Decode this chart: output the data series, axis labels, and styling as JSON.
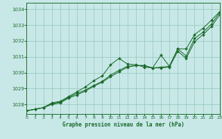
{
  "title": "Graphe pression niveau de la mer (hPa)",
  "bg_color": "#c8e8e8",
  "grid_color": "#99ccbb",
  "line_color": "#1a6b2a",
  "xlim": [
    0,
    23
  ],
  "ylim": [
    1027.4,
    1034.4
  ],
  "yticks": [
    1028,
    1029,
    1030,
    1031,
    1032,
    1033,
    1034
  ],
  "xticks": [
    0,
    1,
    2,
    3,
    4,
    5,
    6,
    7,
    8,
    9,
    10,
    11,
    12,
    13,
    14,
    15,
    16,
    17,
    18,
    19,
    20,
    21,
    22,
    23
  ],
  "hours": [
    0,
    1,
    2,
    3,
    4,
    5,
    6,
    7,
    8,
    9,
    10,
    11,
    12,
    13,
    14,
    15,
    16,
    17,
    18,
    19,
    20,
    21,
    22,
    23
  ],
  "line1": [
    1027.6,
    1027.7,
    1027.8,
    1028.1,
    1028.2,
    1028.5,
    1028.8,
    1029.1,
    1029.5,
    1029.8,
    1030.5,
    1030.9,
    1030.55,
    1030.5,
    1030.35,
    1030.3,
    1031.1,
    1030.4,
    1031.5,
    1031.5,
    1032.4,
    1032.8,
    1033.3,
    1033.85
  ],
  "line2": [
    1027.6,
    1027.7,
    1027.8,
    1028.05,
    1028.15,
    1028.45,
    1028.7,
    1028.9,
    1029.2,
    1029.45,
    1029.85,
    1030.15,
    1030.4,
    1030.45,
    1030.45,
    1030.3,
    1030.35,
    1030.4,
    1031.5,
    1031.05,
    1032.15,
    1032.55,
    1033.05,
    1033.8
  ],
  "line3": [
    1027.6,
    1027.7,
    1027.8,
    1028.0,
    1028.1,
    1028.4,
    1028.6,
    1028.85,
    1029.15,
    1029.4,
    1029.75,
    1030.05,
    1030.35,
    1030.45,
    1030.45,
    1030.3,
    1030.3,
    1030.35,
    1031.35,
    1030.9,
    1031.95,
    1032.4,
    1032.9,
    1033.65
  ]
}
